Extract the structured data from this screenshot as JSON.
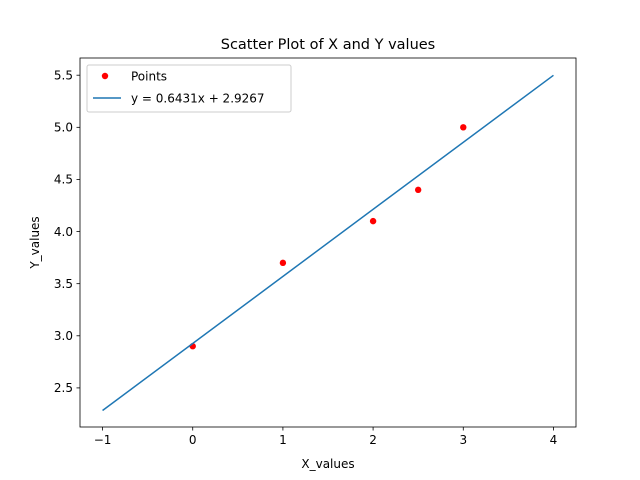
{
  "chart_data": {
    "type": "scatter",
    "title": "Scatter Plot of X and Y values",
    "xlabel": "X_values",
    "ylabel": "Y_values",
    "xlim": [
      -1.25,
      4.25
    ],
    "ylim": [
      2.125,
      5.665
    ],
    "xticks": [
      -1,
      0,
      1,
      2,
      3,
      4
    ],
    "xtick_labels": [
      "−1",
      "0",
      "1",
      "2",
      "3",
      "4"
    ],
    "yticks": [
      2.5,
      3.0,
      3.5,
      4.0,
      4.5,
      5.0,
      5.5
    ],
    "ytick_labels": [
      "2.5",
      "3.0",
      "3.5",
      "4.0",
      "4.5",
      "5.0",
      "5.5"
    ],
    "grid": false,
    "legend_position": "upper-left",
    "series": [
      {
        "name": "Points",
        "kind": "scatter",
        "color": "#ff0000",
        "x": [
          0,
          1,
          2,
          2.5,
          3
        ],
        "y": [
          2.9,
          3.7,
          4.1,
          4.4,
          5.0
        ]
      },
      {
        "name": "y = 0.6431x + 2.9267",
        "kind": "line",
        "color": "#1f77b4",
        "x": [
          -1,
          4
        ],
        "y": [
          2.2836,
          5.4991
        ]
      }
    ]
  }
}
